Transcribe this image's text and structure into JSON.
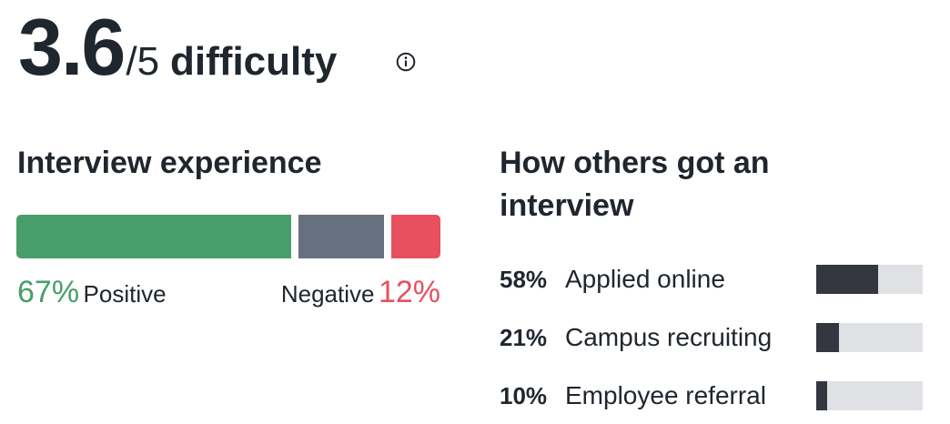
{
  "rating": {
    "value": "3.6",
    "scale": "/5",
    "label": "difficulty"
  },
  "icons": {
    "info": "info-circle-icon"
  },
  "experience": {
    "title": "Interview experience",
    "positive_percent": 67,
    "neutral_percent": 21,
    "negative_percent": 12,
    "positive_value": "67%",
    "positive_label": "Positive",
    "negative_label": "Negative",
    "negative_value": "12%",
    "colors": {
      "positive": "#489e68",
      "neutral": "#67707f",
      "negative": "#e8505f"
    }
  },
  "interview_sources": {
    "title": "How others got an interview",
    "items": [
      {
        "percent": "58%",
        "label": "Applied online",
        "level": 0.58
      },
      {
        "percent": "21%",
        "label": "Campus recruiting",
        "level": 0.21
      },
      {
        "percent": "10%",
        "label": "Employee referral",
        "level": 0.1
      }
    ],
    "colors": {
      "fill": "#343740",
      "track": "#e0e1e4"
    }
  }
}
